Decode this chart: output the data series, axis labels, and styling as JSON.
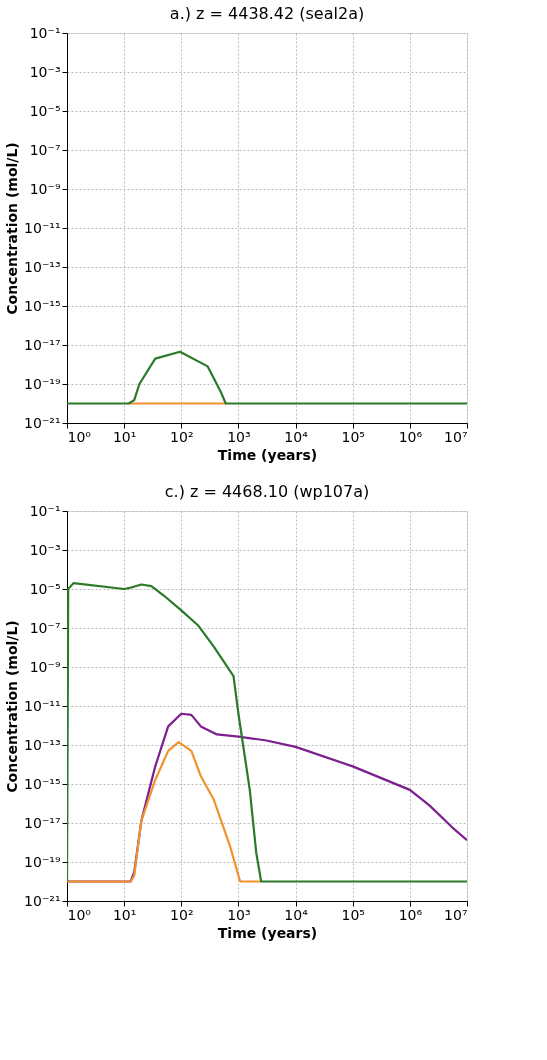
{
  "chart_data": [
    {
      "type": "line",
      "title": "a.) z = 4438.42 (seal2a)",
      "xlabel": "Time (years)",
      "ylabel": "Concentration (mol/L)",
      "log": "xy",
      "grid": true,
      "line_style": "solid",
      "xlim": [
        1,
        10000000
      ],
      "ylim": [
        1e-21,
        0.1
      ],
      "xticks": [
        {
          "value": 1,
          "label": "10⁰"
        },
        {
          "value": 10,
          "label": "10¹"
        },
        {
          "value": 100,
          "label": "10²"
        },
        {
          "value": 1000,
          "label": "10³"
        },
        {
          "value": 10000,
          "label": "10⁴"
        },
        {
          "value": 100000,
          "label": "10⁵"
        },
        {
          "value": 1000000,
          "label": "10⁶"
        },
        {
          "value": 10000000,
          "label": "10⁷"
        }
      ],
      "yticks": [
        {
          "value": 1e-21,
          "label": "10⁻²¹"
        },
        {
          "value": 1e-19,
          "label": "10⁻¹⁹"
        },
        {
          "value": 1e-17,
          "label": "10⁻¹⁷"
        },
        {
          "value": 1e-15,
          "label": "10⁻¹⁵"
        },
        {
          "value": 1e-13,
          "label": "10⁻¹³"
        },
        {
          "value": 1e-11,
          "label": "10⁻¹¹"
        },
        {
          "value": 1e-09,
          "label": "10⁻⁹"
        },
        {
          "value": 1e-07,
          "label": "10⁻⁷"
        },
        {
          "value": 1e-05,
          "label": "10⁻⁵"
        },
        {
          "value": 0.001,
          "label": "10⁻³"
        },
        {
          "value": 0.1,
          "label": "10⁻¹"
        }
      ],
      "series": [
        {
          "color": "#f0922e",
          "x": [
            12,
            600
          ],
          "values": [
            1e-20,
            1e-20
          ]
        },
        {
          "color": "#2a7a2a",
          "x": [
            1,
            12,
            15,
            18.5,
            35,
            95,
            290,
            490,
            600,
            10000000
          ],
          "values": [
            1e-20,
            1e-20,
            1.5e-20,
            1e-19,
            2e-18,
            4.5e-18,
            8e-19,
            4e-20,
            1e-20,
            1e-20
          ]
        }
      ]
    },
    {
      "type": "line",
      "title": "c.) z = 4468.10 (wp107a)",
      "xlabel": "Time (years)",
      "ylabel": "Concentration (mol/L)",
      "log": "xy",
      "grid": true,
      "line_style": "solid",
      "xlim": [
        1,
        10000000
      ],
      "ylim": [
        1e-21,
        0.1
      ],
      "xticks": [
        {
          "value": 1,
          "label": "10⁰"
        },
        {
          "value": 10,
          "label": "10¹"
        },
        {
          "value": 100,
          "label": "10²"
        },
        {
          "value": 1000,
          "label": "10³"
        },
        {
          "value": 10000,
          "label": "10⁴"
        },
        {
          "value": 100000,
          "label": "10⁵"
        },
        {
          "value": 1000000,
          "label": "10⁶"
        },
        {
          "value": 10000000,
          "label": "10⁷"
        }
      ],
      "yticks": [
        {
          "value": 1e-21,
          "label": "10⁻²¹"
        },
        {
          "value": 1e-19,
          "label": "10⁻¹⁹"
        },
        {
          "value": 1e-17,
          "label": "10⁻¹⁷"
        },
        {
          "value": 1e-15,
          "label": "10⁻¹⁵"
        },
        {
          "value": 1e-13,
          "label": "10⁻¹³"
        },
        {
          "value": 1e-11,
          "label": "10⁻¹¹"
        },
        {
          "value": 1e-09,
          "label": "10⁻⁹"
        },
        {
          "value": 1e-07,
          "label": "10⁻⁷"
        },
        {
          "value": 1e-05,
          "label": "10⁻⁵"
        },
        {
          "value": 0.001,
          "label": "10⁻³"
        },
        {
          "value": 0.1,
          "label": "10⁻¹"
        }
      ],
      "series": [
        {
          "color": "#7b1f8f",
          "x": [
            1,
            13,
            15,
            20,
            35,
            59,
            100,
            150,
            220,
            420,
            1000,
            3100,
            10000,
            100000,
            1000000,
            2200000,
            5500000,
            10000000
          ],
          "values": [
            1e-20,
            1e-20,
            3e-20,
            1.3e-17,
            8e-15,
            9e-13,
            4e-12,
            3.5e-12,
            9e-13,
            3.5e-13,
            2.7e-13,
            1.7e-13,
            8e-14,
            8e-15,
            5e-16,
            8e-17,
            6e-18,
            1.3e-18
          ]
        },
        {
          "color": "#f0922e",
          "x": [
            1,
            13,
            15,
            20,
            35,
            59,
            90,
            150,
            220,
            370,
            720,
            1070,
            2500
          ],
          "values": [
            1e-20,
            1e-20,
            2e-20,
            1.3e-17,
            1.6e-15,
            5e-14,
            1.4e-13,
            5e-14,
            2.5e-15,
            1.6e-16,
            6e-19,
            1e-20,
            1e-20
          ]
        },
        {
          "color": "#2a7a2a",
          "x": [
            1,
            1.05,
            1.3,
            10,
            12,
            20,
            30,
            50,
            100,
            200,
            370,
            820,
            1000,
            1580,
            2050,
            2500,
            10000000
          ],
          "values": [
            1e-20,
            1e-05,
            2e-05,
            1e-05,
            1.1e-05,
            1.7e-05,
            1.4e-05,
            4.5e-06,
            8e-07,
            1.3e-07,
            1.1e-08,
            3.4e-10,
            4e-12,
            5e-16,
            3e-19,
            1e-20,
            1e-20
          ]
        }
      ]
    }
  ]
}
